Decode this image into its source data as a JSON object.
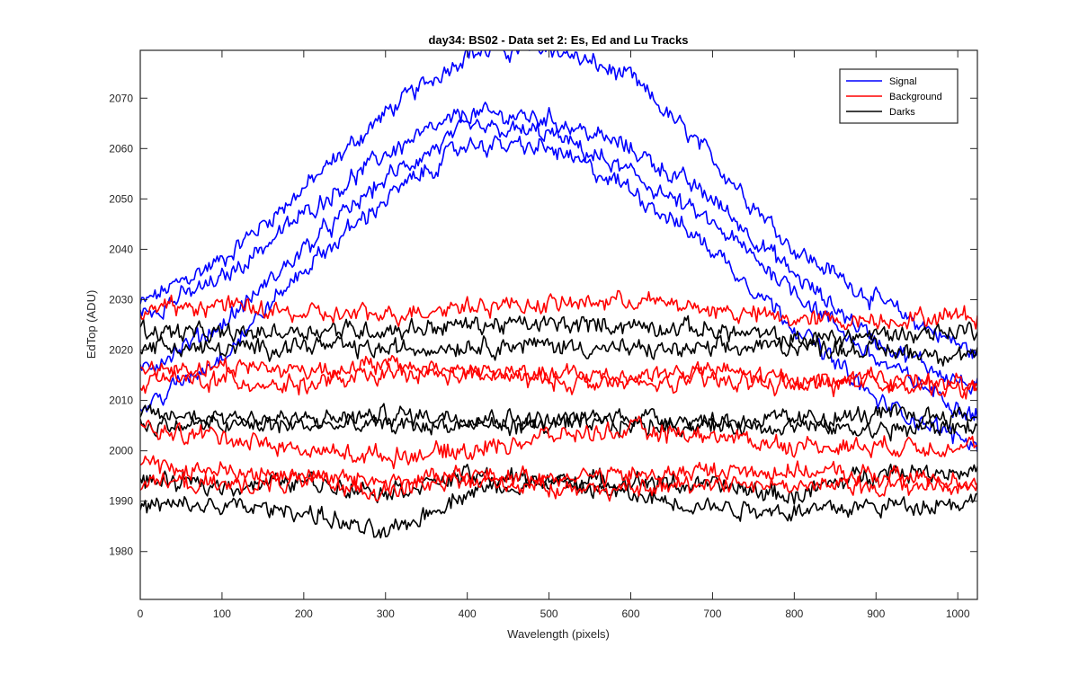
{
  "chart_data": {
    "type": "line",
    "title": "day34: BS02 - Data set 2: Es, Ed and Lu Tracks",
    "xlabel": "Wavelength (pixels)",
    "ylabel": "EdTop (ADU)",
    "xlim": [
      0,
      1024
    ],
    "ylim": [
      1970.5,
      2079.5
    ],
    "xticks": [
      0,
      100,
      200,
      300,
      400,
      500,
      600,
      700,
      800,
      900,
      1000
    ],
    "yticks": [
      1980,
      1990,
      2000,
      2010,
      2020,
      2030,
      2040,
      2050,
      2060,
      2070
    ],
    "grid": false,
    "legend_location": "top-right",
    "colors": {
      "Signal": "#0000ff",
      "Background": "#ff0000",
      "Darks": "#000000"
    },
    "legend": [
      "Signal",
      "Background",
      "Darks"
    ],
    "x_sample": [
      0,
      100,
      200,
      300,
      400,
      500,
      600,
      700,
      800,
      900,
      1024
    ],
    "series": [
      {
        "name": "Signal",
        "values": [
          2029,
          2038,
          2052,
          2067,
          2079,
          2080,
          2074,
          2058,
          2040,
          2030,
          2019
        ]
      },
      {
        "name": "Signal",
        "values": [
          2027,
          2034,
          2047,
          2059,
          2067,
          2066,
          2060,
          2050,
          2035,
          2022,
          2012
        ]
      },
      {
        "name": "Signal",
        "values": [
          2016,
          2025,
          2040,
          2054,
          2064,
          2063,
          2055,
          2045,
          2032,
          2018,
          2007
        ]
      },
      {
        "name": "Signal",
        "values": [
          2008,
          2019,
          2036,
          2050,
          2061,
          2060,
          2052,
          2040,
          2025,
          2010,
          2001
        ]
      },
      {
        "name": "Background",
        "values": [
          2028,
          2029,
          2027,
          2027,
          2029,
          2029,
          2030,
          2028,
          2026,
          2026,
          2027
        ]
      },
      {
        "name": "Background",
        "values": [
          2016,
          2017,
          2016,
          2017,
          2016,
          2015,
          2015,
          2016,
          2014,
          2014,
          2012
        ]
      },
      {
        "name": "Background",
        "values": [
          2014,
          2014,
          2013,
          2015,
          2015,
          2014,
          2013,
          2014,
          2013,
          2014,
          2013
        ]
      },
      {
        "name": "Background",
        "values": [
          2004,
          2003,
          2000,
          1999,
          2000,
          2003,
          2004,
          2003,
          2001,
          2001,
          2001
        ]
      },
      {
        "name": "Background",
        "values": [
          1997,
          1996,
          1995,
          1994,
          1995,
          1995,
          1995,
          1996,
          1996,
          1995,
          1994
        ]
      },
      {
        "name": "Background",
        "values": [
          1994,
          1993,
          1994,
          1992,
          1994,
          1993,
          1992,
          1994,
          1993,
          1993,
          1993
        ]
      },
      {
        "name": "Darks",
        "values": [
          2024,
          2023,
          2024,
          2024,
          2025,
          2025,
          2025,
          2024,
          2022,
          2023,
          2024
        ]
      },
      {
        "name": "Darks",
        "values": [
          2021,
          2020,
          2021,
          2020,
          2021,
          2021,
          2020,
          2020,
          2021,
          2020,
          2019
        ]
      },
      {
        "name": "Darks",
        "values": [
          2007,
          2007,
          2006,
          2007,
          2007,
          2006,
          2007,
          2006,
          2006,
          2007,
          2007
        ]
      },
      {
        "name": "Darks",
        "values": [
          2005,
          2005,
          2005,
          2005,
          2005,
          2005,
          2005,
          2005,
          2005,
          2004,
          2005
        ]
      },
      {
        "name": "Darks",
        "values": [
          1994,
          1993,
          1994,
          1992,
          1995,
          1994,
          1994,
          1993,
          1991,
          1996,
          1996
        ]
      },
      {
        "name": "Darks",
        "values": [
          1989,
          1989,
          1988,
          1983,
          1992,
          1994,
          1991,
          1989,
          1988,
          1989,
          1990
        ]
      }
    ]
  }
}
